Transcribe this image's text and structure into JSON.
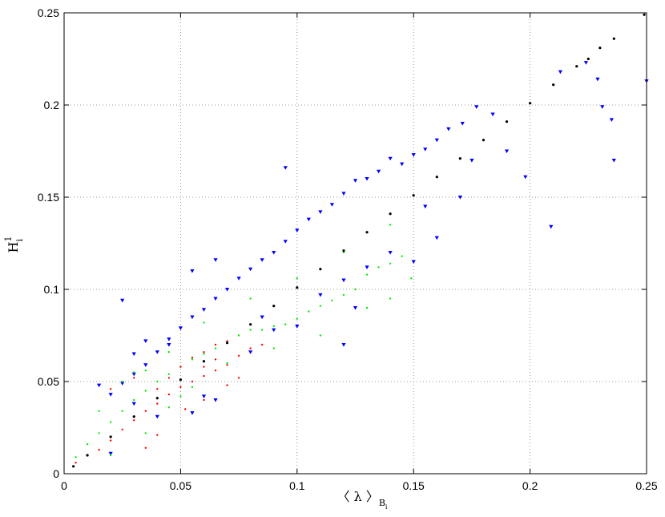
{
  "chart_data": {
    "type": "scatter",
    "xlim": [
      0,
      0.25
    ],
    "ylim": [
      0,
      0.25
    ],
    "xticks": [
      0,
      0.05,
      0.1,
      0.15,
      0.2,
      0.25
    ],
    "yticks": [
      0,
      0.05,
      0.1,
      0.15,
      0.2,
      0.25
    ],
    "xtick_labels": [
      "0",
      "0.05",
      "0.1",
      "0.15",
      "0.2",
      "0.25"
    ],
    "ytick_labels": [
      "0",
      "0.05",
      "0.1",
      "0.15",
      "0.2",
      "0.25"
    ],
    "xlabel": {
      "open": "〈 λ 〉",
      "sub": "B",
      "subsub": "i"
    },
    "ylabel": {
      "base": "H",
      "sup": "1",
      "sub": "i"
    },
    "grid": true,
    "series": [
      {
        "marker": "triangle-down",
        "color": "#0000ff",
        "points": [
          [
            0.25,
            0.213
          ],
          [
            0.236,
            0.17
          ],
          [
            0.235,
            0.192
          ],
          [
            0.231,
            0.199
          ],
          [
            0.229,
            0.214
          ],
          [
            0.224,
            0.223
          ],
          [
            0.213,
            0.218
          ],
          [
            0.209,
            0.134
          ],
          [
            0.198,
            0.161
          ],
          [
            0.19,
            0.175
          ],
          [
            0.184,
            0.195
          ],
          [
            0.177,
            0.199
          ],
          [
            0.171,
            0.19
          ],
          [
            0.165,
            0.187
          ],
          [
            0.16,
            0.181
          ],
          [
            0.155,
            0.176
          ],
          [
            0.15,
            0.173
          ],
          [
            0.145,
            0.168
          ],
          [
            0.14,
            0.171
          ],
          [
            0.135,
            0.164
          ],
          [
            0.13,
            0.16
          ],
          [
            0.125,
            0.159
          ],
          [
            0.12,
            0.152
          ],
          [
            0.115,
            0.146
          ],
          [
            0.11,
            0.142
          ],
          [
            0.105,
            0.138
          ],
          [
            0.1,
            0.132
          ],
          [
            0.095,
            0.126
          ],
          [
            0.09,
            0.12
          ],
          [
            0.085,
            0.116
          ],
          [
            0.08,
            0.111
          ],
          [
            0.075,
            0.106
          ],
          [
            0.07,
            0.1
          ],
          [
            0.065,
            0.095
          ],
          [
            0.06,
            0.089
          ],
          [
            0.055,
            0.085
          ],
          [
            0.05,
            0.079
          ],
          [
            0.045,
            0.073
          ],
          [
            0.04,
            0.066
          ],
          [
            0.035,
            0.059
          ],
          [
            0.03,
            0.054
          ],
          [
            0.025,
            0.049
          ],
          [
            0.02,
            0.043
          ],
          [
            0.015,
            0.048
          ],
          [
            0.055,
            0.11
          ],
          [
            0.065,
            0.116
          ],
          [
            0.095,
            0.166
          ],
          [
            0.175,
            0.17
          ],
          [
            0.17,
            0.15
          ],
          [
            0.16,
            0.128
          ],
          [
            0.155,
            0.145
          ],
          [
            0.15,
            0.115
          ],
          [
            0.14,
            0.12
          ],
          [
            0.13,
            0.112
          ],
          [
            0.12,
            0.105
          ],
          [
            0.11,
            0.097
          ],
          [
            0.1,
            0.08
          ],
          [
            0.09,
            0.078
          ],
          [
            0.085,
            0.085
          ],
          [
            0.125,
            0.09
          ],
          [
            0.12,
            0.07
          ],
          [
            0.08,
            0.066
          ],
          [
            0.06,
            0.042
          ],
          [
            0.055,
            0.033
          ],
          [
            0.065,
            0.04
          ],
          [
            0.045,
            0.07
          ],
          [
            0.035,
            0.072
          ],
          [
            0.03,
            0.065
          ],
          [
            0.025,
            0.094
          ],
          [
            0.04,
            0.031
          ],
          [
            0.02,
            0.011
          ],
          [
            0.03,
            0.038
          ]
        ]
      },
      {
        "marker": "dot",
        "color": "#00ee00",
        "points": [
          [
            0.149,
            0.106
          ],
          [
            0.145,
            0.118
          ],
          [
            0.14,
            0.114
          ],
          [
            0.135,
            0.112
          ],
          [
            0.13,
            0.108
          ],
          [
            0.125,
            0.1
          ],
          [
            0.12,
            0.097
          ],
          [
            0.115,
            0.094
          ],
          [
            0.11,
            0.091
          ],
          [
            0.105,
            0.088
          ],
          [
            0.1,
            0.084
          ],
          [
            0.095,
            0.081
          ],
          [
            0.09,
            0.08
          ],
          [
            0.085,
            0.078
          ],
          [
            0.08,
            0.078
          ],
          [
            0.075,
            0.075
          ],
          [
            0.07,
            0.071
          ],
          [
            0.065,
            0.068
          ],
          [
            0.06,
            0.065
          ],
          [
            0.055,
            0.062
          ],
          [
            0.05,
            0.058
          ],
          [
            0.045,
            0.054
          ],
          [
            0.04,
            0.05
          ],
          [
            0.035,
            0.045
          ],
          [
            0.03,
            0.04
          ],
          [
            0.025,
            0.034
          ],
          [
            0.02,
            0.028
          ],
          [
            0.015,
            0.022
          ],
          [
            0.01,
            0.016
          ],
          [
            0.005,
            0.009
          ],
          [
            0.14,
            0.135
          ],
          [
            0.12,
            0.12
          ],
          [
            0.1,
            0.106
          ],
          [
            0.08,
            0.095
          ],
          [
            0.06,
            0.082
          ],
          [
            0.045,
            0.066
          ],
          [
            0.035,
            0.056
          ],
          [
            0.03,
            0.055
          ],
          [
            0.045,
            0.036
          ],
          [
            0.035,
            0.022
          ],
          [
            0.02,
            0.01
          ],
          [
            0.015,
            0.034
          ],
          [
            0.025,
            0.05
          ],
          [
            0.05,
            0.042
          ],
          [
            0.055,
            0.047
          ],
          [
            0.07,
            0.06
          ],
          [
            0.09,
            0.068
          ],
          [
            0.11,
            0.075
          ],
          [
            0.13,
            0.09
          ],
          [
            0.14,
            0.095
          ]
        ]
      },
      {
        "marker": "dot",
        "color": "#ff0000",
        "points": [
          [
            0.08,
            0.068
          ],
          [
            0.075,
            0.064
          ],
          [
            0.07,
            0.059
          ],
          [
            0.065,
            0.056
          ],
          [
            0.06,
            0.053
          ],
          [
            0.055,
            0.05
          ],
          [
            0.05,
            0.047
          ],
          [
            0.045,
            0.043
          ],
          [
            0.04,
            0.038
          ],
          [
            0.035,
            0.034
          ],
          [
            0.03,
            0.029
          ],
          [
            0.025,
            0.024
          ],
          [
            0.02,
            0.018
          ],
          [
            0.015,
            0.013
          ],
          [
            0.01,
            0.01
          ],
          [
            0.005,
            0.006
          ],
          [
            0.06,
            0.066
          ],
          [
            0.065,
            0.07
          ],
          [
            0.07,
            0.072
          ],
          [
            0.055,
            0.063
          ],
          [
            0.05,
            0.058
          ],
          [
            0.045,
            0.052
          ],
          [
            0.04,
            0.046
          ],
          [
            0.03,
            0.052
          ],
          [
            0.02,
            0.046
          ],
          [
            0.04,
            0.021
          ],
          [
            0.035,
            0.014
          ],
          [
            0.052,
            0.035
          ],
          [
            0.06,
            0.04
          ],
          [
            0.07,
            0.048
          ],
          [
            0.075,
            0.052
          ],
          [
            0.085,
            0.07
          ],
          [
            0.065,
            0.062
          ],
          [
            0.06,
            0.058
          ]
        ]
      },
      {
        "marker": "dot",
        "color": "#000000",
        "points": [
          [
            0.004,
            0.004
          ],
          [
            0.01,
            0.01
          ],
          [
            0.02,
            0.02
          ],
          [
            0.03,
            0.031
          ],
          [
            0.04,
            0.041
          ],
          [
            0.05,
            0.051
          ],
          [
            0.06,
            0.061
          ],
          [
            0.07,
            0.071
          ],
          [
            0.08,
            0.081
          ],
          [
            0.09,
            0.091
          ],
          [
            0.1,
            0.101
          ],
          [
            0.11,
            0.111
          ],
          [
            0.12,
            0.121
          ],
          [
            0.13,
            0.131
          ],
          [
            0.14,
            0.141
          ],
          [
            0.15,
            0.151
          ],
          [
            0.16,
            0.161
          ],
          [
            0.17,
            0.171
          ],
          [
            0.18,
            0.181
          ],
          [
            0.19,
            0.191
          ],
          [
            0.2,
            0.201
          ],
          [
            0.21,
            0.211
          ],
          [
            0.22,
            0.221
          ],
          [
            0.225,
            0.225
          ],
          [
            0.23,
            0.231
          ],
          [
            0.236,
            0.236
          ],
          [
            0.249,
            0.249
          ]
        ]
      }
    ]
  }
}
